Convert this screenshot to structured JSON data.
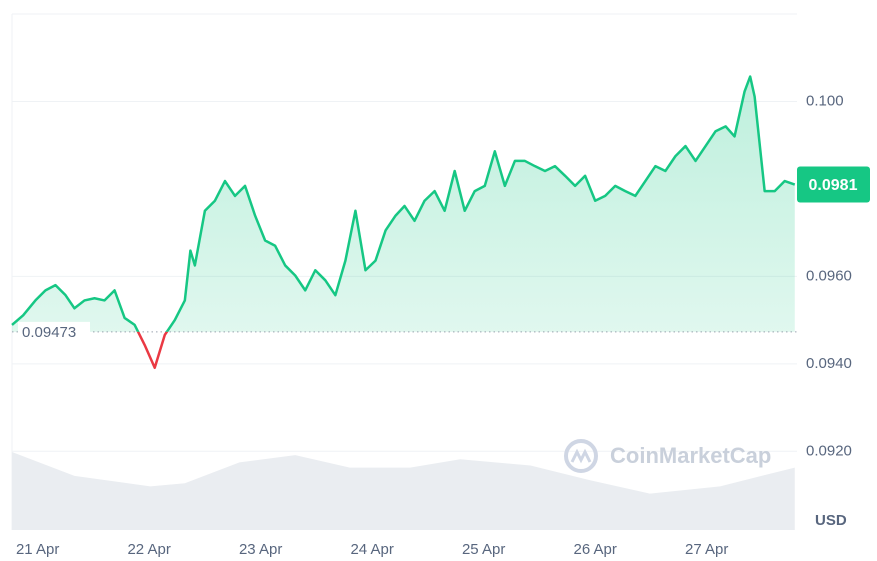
{
  "chart_data": {
    "type": "line",
    "color": "#16c784",
    "down_color": "#ea3943",
    "x": [
      20.77,
      20.87,
      20.98,
      21.07,
      21.16,
      21.25,
      21.33,
      21.42,
      21.51,
      21.6,
      21.69,
      21.78,
      21.87,
      21.96,
      22.05,
      22.14,
      22.23,
      22.32,
      22.37,
      22.41,
      22.5,
      22.59,
      22.68,
      22.77,
      22.86,
      22.95,
      23.04,
      23.13,
      23.22,
      23.31,
      23.4,
      23.49,
      23.58,
      23.67,
      23.76,
      23.85,
      23.94,
      24.03,
      24.12,
      24.21,
      24.29,
      24.38,
      24.47,
      24.56,
      24.65,
      24.74,
      24.83,
      24.92,
      25.01,
      25.1,
      25.19,
      25.28,
      25.37,
      25.46,
      25.55,
      25.64,
      25.73,
      25.82,
      25.91,
      26.0,
      26.09,
      26.18,
      26.27,
      26.36,
      26.45,
      26.54,
      26.63,
      26.72,
      26.81,
      26.9,
      26.99,
      27.08,
      27.17,
      27.25,
      27.34,
      27.39,
      27.43,
      27.52,
      27.61,
      27.7,
      27.79
    ],
    "values": [
      0.09489,
      0.09511,
      0.09545,
      0.09568,
      0.0958,
      0.09557,
      0.09527,
      0.09545,
      0.0955,
      0.09545,
      0.09568,
      0.09505,
      0.09489,
      0.09443,
      0.09391,
      0.09466,
      0.095,
      0.09545,
      0.09659,
      0.09625,
      0.0975,
      0.09773,
      0.09818,
      0.09784,
      0.09807,
      0.09739,
      0.09682,
      0.0967,
      0.09625,
      0.09602,
      0.09568,
      0.09614,
      0.09591,
      0.09557,
      0.09636,
      0.0975,
      0.09614,
      0.09636,
      0.09705,
      0.09739,
      0.09761,
      0.09727,
      0.09773,
      0.09795,
      0.0975,
      0.09841,
      0.0975,
      0.09795,
      0.09807,
      0.09886,
      0.09807,
      0.09864,
      0.09864,
      0.09852,
      0.09841,
      0.09852,
      0.0983,
      0.09807,
      0.0983,
      0.09773,
      0.09784,
      0.09807,
      0.09795,
      0.09784,
      0.09818,
      0.09852,
      0.09841,
      0.09875,
      0.09898,
      0.09864,
      0.09898,
      0.09932,
      0.09943,
      0.0992,
      0.10023,
      0.10057,
      0.10011,
      0.09795,
      0.09795,
      0.09818,
      0.0981
    ],
    "baseline": 0.09473,
    "current_price": 0.0981,
    "xlim": [
      20.77,
      27.81
    ],
    "ylim": [
      0.0902,
      0.102
    ],
    "xticks": [
      {
        "value": 21,
        "label": "21 Apr"
      },
      {
        "value": 22,
        "label": "22 Apr"
      },
      {
        "value": 23,
        "label": "23 Apr"
      },
      {
        "value": 24,
        "label": "24 Apr"
      },
      {
        "value": 25,
        "label": "25 Apr"
      },
      {
        "value": 26,
        "label": "26 Apr"
      },
      {
        "value": 27,
        "label": "27 Apr"
      }
    ],
    "yticks": [
      {
        "value": 0.1,
        "label": "0.100"
      },
      {
        "value": 0.096,
        "label": "0.0960"
      },
      {
        "value": 0.094,
        "label": "0.0940"
      },
      {
        "value": 0.092,
        "label": "0.0920"
      }
    ],
    "grid": true,
    "unit": "USD",
    "watermark": "CoinMarketCap",
    "volume": {
      "x": [
        20.77,
        21.33,
        22.01,
        22.32,
        22.81,
        23.31,
        23.8,
        24.34,
        24.79,
        25.42,
        25.95,
        26.49,
        27.12,
        27.79
      ],
      "values": [
        75,
        52,
        42,
        45,
        65,
        72,
        60,
        60,
        68,
        62,
        48,
        35,
        42,
        60
      ]
    }
  }
}
